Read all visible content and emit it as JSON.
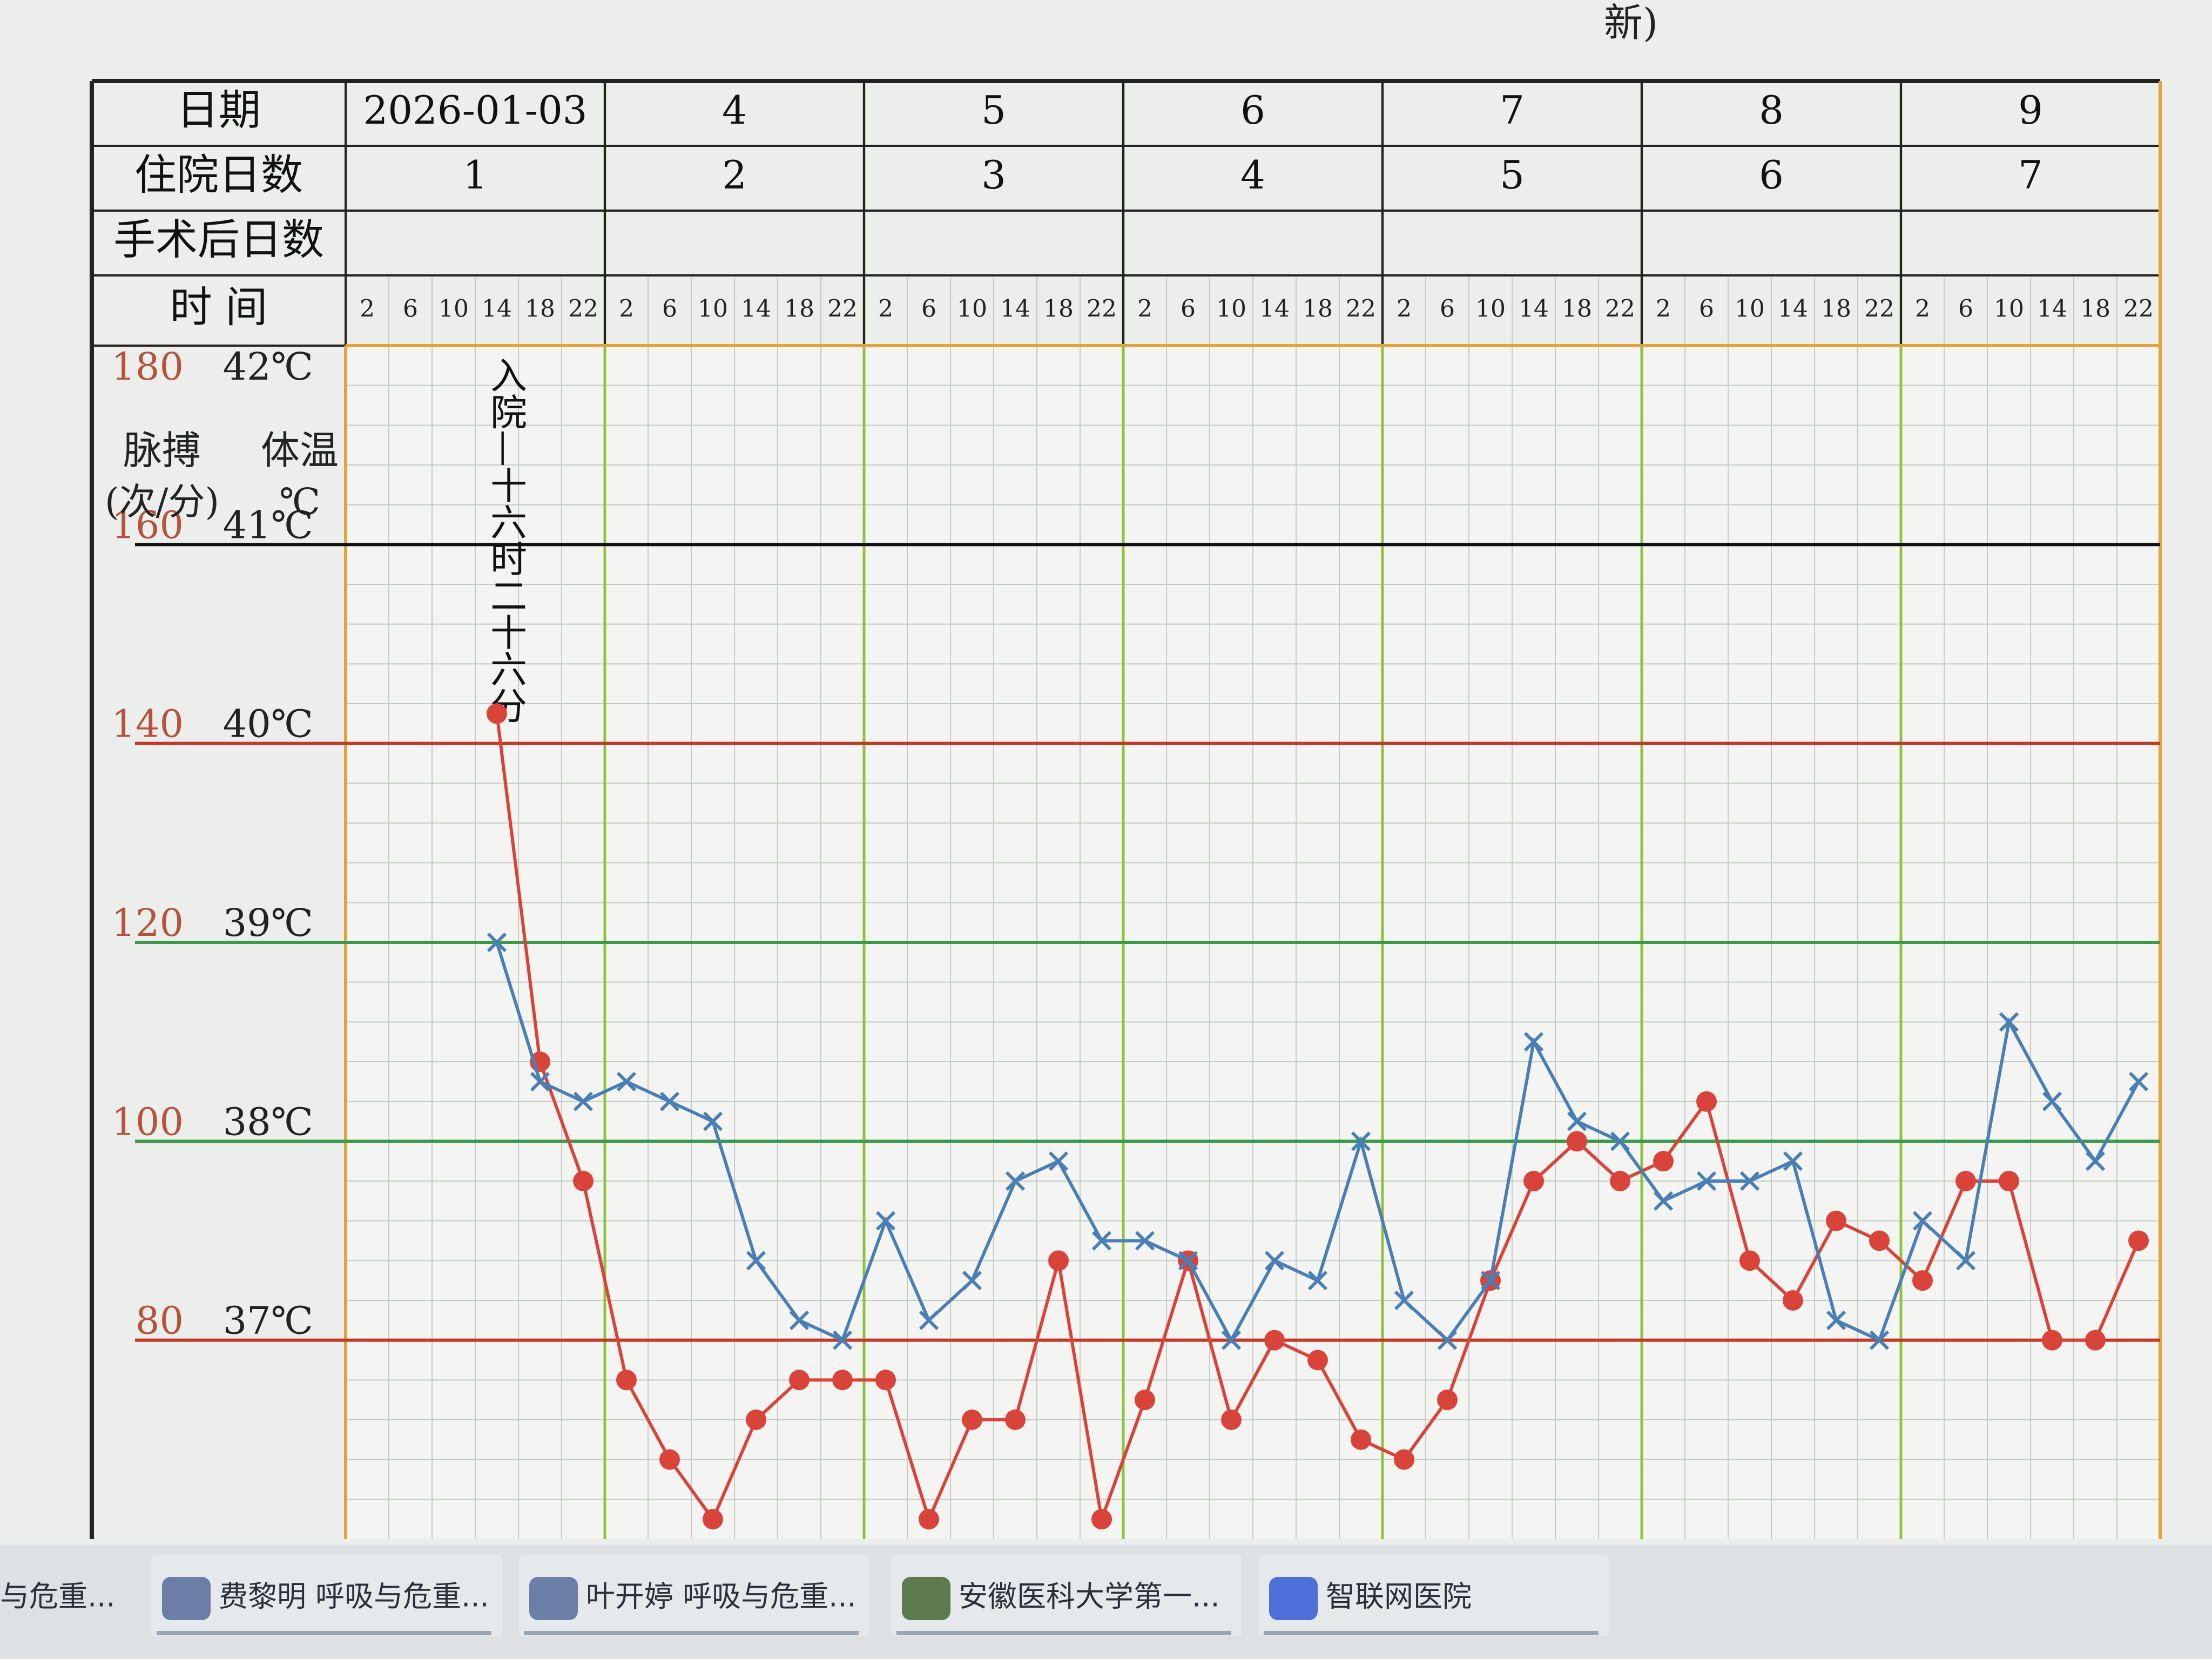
{
  "top_fragment": "新)",
  "chart_data": {
    "type": "line",
    "row_labels": [
      "日期",
      "住院日数",
      "手术后日数",
      "时 间"
    ],
    "dates": [
      "2026-01-03",
      "4",
      "5",
      "6",
      "7",
      "8",
      "9"
    ],
    "hospital_days": [
      "1",
      "2",
      "3",
      "4",
      "5",
      "6",
      "7"
    ],
    "categories": [
      2,
      6,
      10,
      14,
      18,
      22,
      2,
      6,
      10,
      14,
      18,
      22,
      2,
      6,
      10,
      14,
      18,
      22,
      2,
      6,
      10,
      14,
      18,
      22,
      2,
      6,
      10,
      14,
      18,
      22,
      2,
      6,
      10,
      14,
      18,
      22,
      2,
      6,
      10,
      14,
      18,
      22
    ],
    "y_label": "脉搏",
    "y_unit": "(次/分)",
    "y2_label": "体温",
    "y2_unit": "℃",
    "ylim": [
      60,
      180
    ],
    "yticks": [
      180,
      160,
      140,
      120,
      100,
      80
    ],
    "y_tick_color": "#b5533c",
    "y2lim": [
      36,
      42
    ],
    "y2ticks": [
      {
        "value": 42,
        "label": "42℃"
      },
      {
        "value": 41,
        "label": "41℃"
      },
      {
        "value": 40,
        "label": "40℃"
      },
      {
        "value": 39,
        "label": "39℃"
      },
      {
        "value": 38,
        "label": "38℃"
      },
      {
        "value": 37,
        "label": "37℃"
      }
    ],
    "y2tick_line_colors": [
      "#e3a33a",
      "#111111",
      "#c0392b",
      "#3a9a4a",
      "#3a9a4a",
      "#c0392b"
    ],
    "grid": true,
    "annotation": "入院—十六时二十六分",
    "series": [
      {
        "color": "#d9443a",
        "marker": "circle",
        "values": [
          null,
          null,
          null,
          143,
          108,
          96,
          76,
          68,
          62,
          72,
          76,
          76,
          76,
          62,
          72,
          72,
          88,
          62,
          74,
          88,
          72,
          80,
          78,
          70,
          68,
          74,
          86,
          96,
          100,
          96,
          98,
          104,
          88,
          84,
          92,
          90,
          86,
          96,
          96,
          80,
          80,
          90
        ]
      },
      {
        "color": "#4a7fb5",
        "marker": "x",
        "axis": "y2",
        "values": [
          null,
          null,
          null,
          39.0,
          38.3,
          38.2,
          38.3,
          38.2,
          38.1,
          37.4,
          37.1,
          37.0,
          37.6,
          37.1,
          37.3,
          37.8,
          37.9,
          37.5,
          37.5,
          37.4,
          37.0,
          37.4,
          37.3,
          38.0,
          37.2,
          37.0,
          37.3,
          38.5,
          38.1,
          38.0,
          37.7,
          37.8,
          37.8,
          37.9,
          37.1,
          37.0,
          37.6,
          37.4,
          38.6,
          38.2,
          37.9,
          38.3
        ]
      }
    ]
  },
  "taskbar": {
    "items": [
      "与危重...",
      "费黎明 呼吸与危重...",
      "叶开婷 呼吸与危重...",
      "安徽医科大学第一...",
      "智联网医院"
    ]
  }
}
